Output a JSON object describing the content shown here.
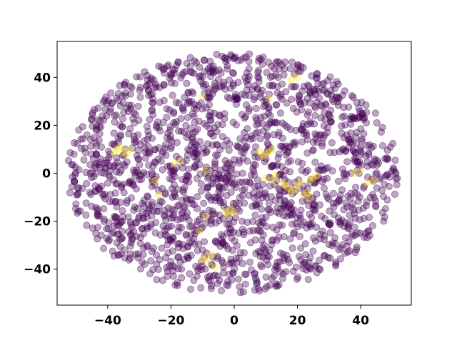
{
  "chart_data": {
    "type": "scatter",
    "title": "",
    "xlabel": "",
    "ylabel": "",
    "xlim": [
      -56,
      56
    ],
    "ylim": [
      -55,
      55
    ],
    "x_ticks": [
      -40,
      -20,
      0,
      20,
      40
    ],
    "y_ticks": [
      -40,
      -20,
      0,
      20,
      40
    ],
    "x_tick_labels": [
      "−40",
      "−20",
      "0",
      "20",
      "40"
    ],
    "y_tick_labels": [
      "−40",
      "−20",
      "0",
      "20",
      "40"
    ],
    "grid": false,
    "legend": "none",
    "marker_opacity": 0.35,
    "series": [
      {
        "color": "#440154",
        "point_count": 1800,
        "distribution": "ellipse-uniform",
        "x_range": [
          -53,
          52
        ],
        "y_range": [
          -50,
          50
        ]
      },
      {
        "color": "#fde725",
        "points": [
          [
            -37,
            10
          ],
          [
            -35,
            9
          ],
          [
            -33,
            10
          ],
          [
            -36,
            11
          ],
          [
            -38,
            9
          ],
          [
            -34,
            8
          ],
          [
            -25,
            -3
          ],
          [
            -24,
            -9
          ],
          [
            -19,
            4
          ],
          [
            -17,
            5
          ],
          [
            -11,
            -24
          ],
          [
            -9,
            -18
          ],
          [
            -9,
            -35
          ],
          [
            -8,
            -37
          ],
          [
            -6,
            -39
          ],
          [
            -7,
            -34
          ],
          [
            -10,
            -36
          ],
          [
            -2,
            -17
          ],
          [
            -1,
            -15
          ],
          [
            0,
            -16
          ],
          [
            -3,
            -16
          ],
          [
            -9,
            1
          ],
          [
            8,
            9
          ],
          [
            10,
            8
          ],
          [
            11,
            9
          ],
          [
            12,
            10
          ],
          [
            9,
            7
          ],
          [
            10,
            -2
          ],
          [
            12,
            -3
          ],
          [
            13,
            -1
          ],
          [
            15,
            -4
          ],
          [
            16,
            -5
          ],
          [
            17,
            -6
          ],
          [
            18,
            -8
          ],
          [
            19,
            -7
          ],
          [
            20,
            -5
          ],
          [
            21,
            -4
          ],
          [
            22,
            -9
          ],
          [
            23,
            -8
          ],
          [
            24,
            -10
          ],
          [
            25,
            -2
          ],
          [
            26,
            -1
          ],
          [
            24,
            -3
          ],
          [
            18,
            39
          ],
          [
            20,
            40
          ],
          [
            11,
            31
          ],
          [
            -10,
            32
          ],
          [
            38,
            0
          ],
          [
            40,
            1
          ],
          [
            42,
            -4
          ],
          [
            44,
            -3
          ]
        ]
      }
    ]
  }
}
